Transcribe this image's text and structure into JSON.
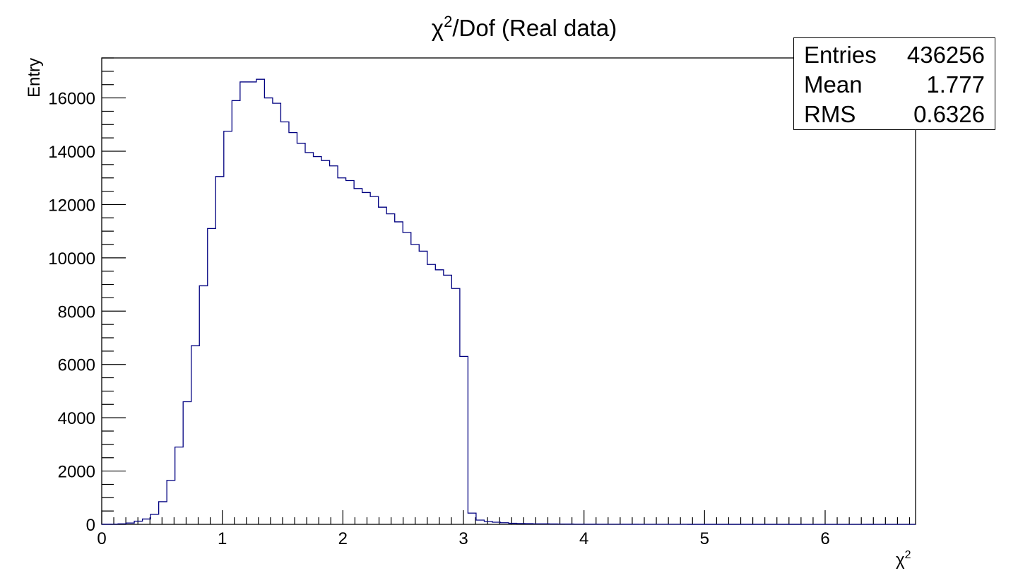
{
  "chart_data": {
    "type": "histogram",
    "title": "χ²/Dof (Real data)",
    "title_main": "χ",
    "title_sup": "2",
    "title_rest": "/Dof (Real data)",
    "xlabel_main": "χ",
    "xlabel_sup": "2",
    "ylabel": "Entry",
    "xlim": [
      0,
      6.75
    ],
    "ylim": [
      0,
      17500
    ],
    "bin_width": 0.0675,
    "x_ticks": [
      0,
      1,
      2,
      3,
      4,
      5,
      6
    ],
    "y_ticks": [
      0,
      2000,
      4000,
      6000,
      8000,
      10000,
      12000,
      14000,
      16000
    ],
    "line_color": "#000080",
    "grid": false,
    "values": [
      5,
      10,
      20,
      50,
      120,
      200,
      380,
      850,
      1650,
      2900,
      4600,
      6700,
      8950,
      11100,
      13050,
      14750,
      15900,
      16600,
      16600,
      16700,
      16000,
      15800,
      15100,
      14700,
      14300,
      13950,
      13800,
      13650,
      13450,
      13000,
      12900,
      12600,
      12450,
      12300,
      11900,
      11650,
      11350,
      10950,
      10500,
      10250,
      9750,
      9550,
      9350,
      8850,
      6300,
      420,
      160,
      110,
      80,
      60,
      40,
      30,
      25,
      20,
      18,
      15,
      14,
      12,
      10,
      10,
      8,
      7,
      6,
      6,
      5,
      5,
      4,
      4,
      3,
      3,
      3,
      3,
      2,
      2,
      2,
      2,
      2,
      2,
      1,
      1,
      1,
      1,
      1,
      1,
      1,
      1,
      0,
      0,
      0,
      0,
      0,
      0,
      0,
      0,
      1,
      0,
      0,
      0,
      0,
      0
    ]
  },
  "stats": {
    "entries_label": "Entries",
    "entries_value": "436256",
    "mean_label": "Mean",
    "mean_value": "1.777",
    "rms_label": "RMS",
    "rms_value": "0.6326"
  }
}
